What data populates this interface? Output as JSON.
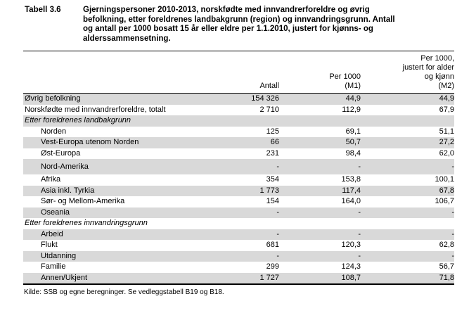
{
  "document": {
    "table_label": "Tabell 3.6",
    "title_lines": [
      "Gjerningspersoner 2010-2013, norskfødte med innvandrerforeldre og øvrig",
      "befolkning, etter foreldrenes landbakgrunn (region) og innvandringsgrunn. Antall",
      "og antall per 1000 bosatt 15 år eller eldre per 1.1.2010, justert for kjønns- og",
      "alderssammensetning."
    ],
    "source_note": "Kilde: SSB og egne beregninger. Se vedleggstabell B19 og B18."
  },
  "table": {
    "header": {
      "m2_line1": "Per 1000,",
      "m2_line2": "justert for alder",
      "m1_line3": "Per 1000",
      "m2_line3": "og kjønn",
      "antall_line4": "Antall",
      "m1_line4": "(M1)",
      "m2_line4": "(M2)"
    },
    "rows": [
      {
        "label": "Øvrig befolkning",
        "antall": "154 326",
        "m1": "44,9",
        "m2": "44,9"
      },
      {
        "label": "Norskfødte med innvandrerforeldre, totalt",
        "antall": "2 710",
        "m1": "112,9",
        "m2": "67,9"
      },
      {
        "label": "Etter foreldrenes landbakgrunn",
        "antall": "",
        "m1": "",
        "m2": ""
      },
      {
        "label": "Norden",
        "antall": "125",
        "m1": "69,1",
        "m2": "51,1"
      },
      {
        "label": "Vest-Europa utenom Norden",
        "antall": "66",
        "m1": "50,7",
        "m2": "27,2"
      },
      {
        "label": "Øst-Europa",
        "antall": "231",
        "m1": "98,4",
        "m2": "62,0"
      },
      {
        "label": "Nord-Amerika",
        "antall": "-",
        "m1": "-",
        "m2": "-"
      },
      {
        "label": "Afrika",
        "antall": "354",
        "m1": "153,8",
        "m2": "100,1"
      },
      {
        "label": "Asia inkl. Tyrkia",
        "antall": "1 773",
        "m1": "117,4",
        "m2": "67,8"
      },
      {
        "label": "Sør- og Mellom-Amerika",
        "antall": "154",
        "m1": "164,0",
        "m2": "106,7"
      },
      {
        "label": "Oseania",
        "antall": "-",
        "m1": "-",
        "m2": "-"
      },
      {
        "label": "Etter foreldrenes innvandringsgrunn",
        "antall": "",
        "m1": "",
        "m2": ""
      },
      {
        "label": "Arbeid",
        "antall": "-",
        "m1": "-",
        "m2": "-"
      },
      {
        "label": "Flukt",
        "antall": "681",
        "m1": "120,3",
        "m2": "62,8"
      },
      {
        "label": "Utdanning",
        "antall": "-",
        "m1": "-",
        "m2": "-"
      },
      {
        "label": "Familie",
        "antall": "299",
        "m1": "124,3",
        "m2": "56,7"
      },
      {
        "label": "Annen/Ukjent",
        "antall": "1 727",
        "m1": "108,7",
        "m2": "71,8"
      }
    ]
  },
  "colors": {
    "row_shading": "#d9d9d9",
    "text": "#000000",
    "rule": "#000000"
  }
}
